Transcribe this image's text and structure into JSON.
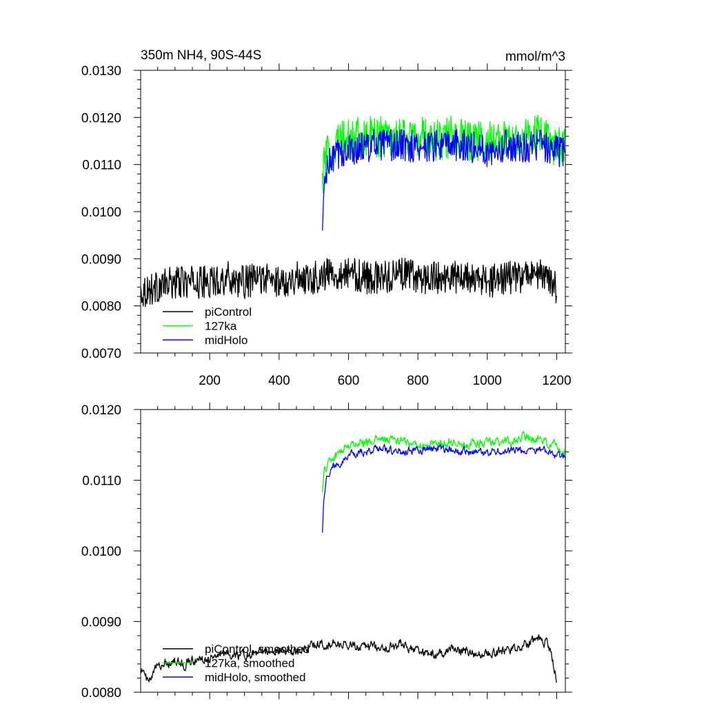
{
  "chart_data": [
    {
      "type": "line",
      "title": "350m NH4, 90S-44S",
      "units": "mmol/m^3",
      "xlabel": "",
      "ylabel": "",
      "xlim": [
        1,
        1225
      ],
      "ylim": [
        0.007,
        0.013
      ],
      "xticks": [
        200,
        400,
        600,
        800,
        1000,
        1200
      ],
      "xtick_labels": [
        "200",
        "400",
        "600",
        "800",
        "1000",
        "1200"
      ],
      "yticks": [
        0.007,
        0.008,
        0.009,
        0.01,
        0.011,
        0.012,
        0.013
      ],
      "ytick_labels": [
        "0.0070",
        "0.0080",
        "0.0090",
        "0.0100",
        "0.0110",
        "0.0120",
        "0.0130"
      ],
      "grid": false,
      "legend_position": "bottom-left",
      "series": [
        {
          "name": "piControl",
          "color": "#000000",
          "x": [
            1,
            50,
            100,
            150,
            200,
            250,
            300,
            350,
            400,
            450,
            500,
            550,
            600,
            650,
            700,
            750,
            800,
            850,
            900,
            950,
            1000,
            1050,
            1100,
            1150,
            1200
          ],
          "y": [
            0.0083,
            0.0084,
            0.0085,
            0.0085,
            0.0085,
            0.0086,
            0.0085,
            0.0086,
            0.0085,
            0.0086,
            0.0086,
            0.0087,
            0.0087,
            0.0086,
            0.0086,
            0.0087,
            0.0086,
            0.0086,
            0.0086,
            0.0086,
            0.0085,
            0.0086,
            0.0086,
            0.0087,
            0.0084
          ]
        },
        {
          "name": "127ka",
          "color": "#00ff00",
          "x": [
            525,
            530,
            540,
            550,
            575,
            600,
            650,
            700,
            750,
            800,
            850,
            900,
            950,
            1000,
            1050,
            1100,
            1150,
            1200,
            1225
          ],
          "y": [
            0.0107,
            0.011,
            0.0112,
            0.0113,
            0.0115,
            0.0115,
            0.0116,
            0.0116,
            0.0116,
            0.0116,
            0.0115,
            0.0116,
            0.0115,
            0.0115,
            0.0115,
            0.0116,
            0.0116,
            0.0114,
            0.0113
          ]
        },
        {
          "name": "midHolo",
          "color": "#0000ff",
          "x": [
            525,
            528,
            535,
            545,
            560,
            600,
            650,
            700,
            750,
            800,
            850,
            900,
            950,
            1000,
            1050,
            1100,
            1150,
            1200,
            1225
          ],
          "y": [
            0.0095,
            0.0103,
            0.0108,
            0.011,
            0.0112,
            0.0113,
            0.0114,
            0.0114,
            0.0114,
            0.0114,
            0.0114,
            0.0114,
            0.0114,
            0.0113,
            0.0114,
            0.0114,
            0.0114,
            0.0113,
            0.0113
          ]
        }
      ]
    },
    {
      "type": "line",
      "title": "",
      "xlabel": "",
      "ylabel": "",
      "xlim": [
        1,
        1225
      ],
      "ylim": [
        0.008,
        0.012
      ],
      "xticks": [
        200,
        400,
        600,
        800,
        1000,
        1200
      ],
      "xtick_labels": [],
      "yticks": [
        0.008,
        0.009,
        0.01,
        0.011,
        0.012
      ],
      "ytick_labels": [
        "0.0080",
        "0.0090",
        "0.0100",
        "0.0110",
        "0.0120"
      ],
      "grid": false,
      "legend_position": "bottom-left",
      "series": [
        {
          "name": "piControl, smoothed",
          "color": "#000000",
          "x": [
            1,
            25,
            50,
            75,
            100,
            125,
            150,
            175,
            200,
            250,
            300,
            350,
            400,
            450,
            500,
            550,
            600,
            650,
            700,
            750,
            800,
            850,
            900,
            950,
            1000,
            1050,
            1100,
            1150,
            1175,
            1200
          ],
          "y": [
            0.00835,
            0.00812,
            0.00838,
            0.00842,
            0.00845,
            0.00838,
            0.00847,
            0.00846,
            0.0085,
            0.00855,
            0.00852,
            0.00858,
            0.0086,
            0.00858,
            0.00865,
            0.0087,
            0.00868,
            0.00866,
            0.00862,
            0.00868,
            0.00858,
            0.00852,
            0.00862,
            0.00855,
            0.00853,
            0.0086,
            0.00865,
            0.00875,
            0.0087,
            0.0082
          ]
        },
        {
          "name": "127ka, smoothed",
          "color": "#00ff00",
          "x": [
            525,
            530,
            540,
            550,
            575,
            600,
            650,
            700,
            750,
            800,
            850,
            900,
            950,
            1000,
            1050,
            1100,
            1150,
            1200,
            1225
          ],
          "y": [
            0.01088,
            0.0111,
            0.01125,
            0.0113,
            0.01138,
            0.0115,
            0.01155,
            0.01158,
            0.01155,
            0.0115,
            0.01152,
            0.01155,
            0.0115,
            0.01155,
            0.01152,
            0.0116,
            0.01158,
            0.01148,
            0.01138
          ]
        },
        {
          "name": "midHolo, smoothed",
          "color": "#0000ff",
          "x": [
            525,
            528,
            535,
            545,
            560,
            600,
            650,
            700,
            750,
            800,
            850,
            900,
            950,
            1000,
            1050,
            1100,
            1150,
            1200,
            1225
          ],
          "y": [
            0.0103,
            0.0107,
            0.011,
            0.01112,
            0.0112,
            0.01135,
            0.0114,
            0.01145,
            0.0114,
            0.01142,
            0.01145,
            0.01142,
            0.0114,
            0.01138,
            0.01142,
            0.0114,
            0.01145,
            0.01135,
            0.01132
          ]
        }
      ]
    }
  ]
}
